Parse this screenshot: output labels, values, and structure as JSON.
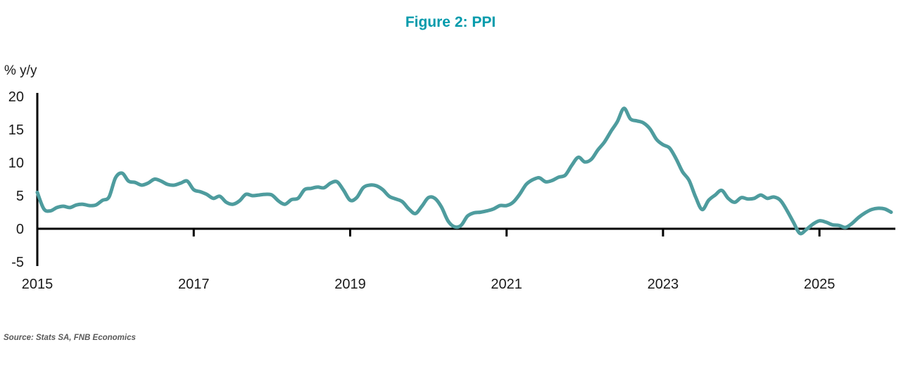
{
  "figure": {
    "title": "Figure 2: PPI"
  },
  "source": {
    "text": "Source: Stats SA, FNB Economics"
  },
  "colors": {
    "title": "#009AAB",
    "line": "#4E9C9E",
    "axis": "#000000",
    "tick_text": "#1a1a1a",
    "source_text": "#595959"
  },
  "chart_data": {
    "type": "line",
    "title": "Figure 2: PPI",
    "ylabel": "% y/y",
    "xlabel": "",
    "frequency": "monthly",
    "x_start": "2015-01",
    "x_end": "2025-12",
    "x_tick_years": [
      2015,
      2017,
      2019,
      2021,
      2023,
      2025
    ],
    "y_ticks": [
      20,
      15,
      10,
      5,
      0,
      -5
    ],
    "ylim": [
      -5,
      20
    ],
    "grid": false,
    "legend": "none",
    "series": [
      {
        "name": "PPI (% y/y)",
        "color": "#4E9C9E",
        "values": [
          5.5,
          3.0,
          2.7,
          3.2,
          3.4,
          3.2,
          3.6,
          3.7,
          3.5,
          3.6,
          4.3,
          4.8,
          7.7,
          8.4,
          7.2,
          7.0,
          6.6,
          6.9,
          7.5,
          7.2,
          6.7,
          6.6,
          6.9,
          7.2,
          5.9,
          5.6,
          5.2,
          4.6,
          4.9,
          4.0,
          3.7,
          4.2,
          5.2,
          5.0,
          5.1,
          5.2,
          5.1,
          4.2,
          3.7,
          4.4,
          4.6,
          5.9,
          6.1,
          6.3,
          6.2,
          6.9,
          7.1,
          5.8,
          4.3,
          4.7,
          6.2,
          6.6,
          6.5,
          5.9,
          4.9,
          4.5,
          4.1,
          3.0,
          2.3,
          3.4,
          4.7,
          4.6,
          3.3,
          1.2,
          0.3,
          0.5,
          1.9,
          2.4,
          2.5,
          2.7,
          3.0,
          3.5,
          3.5,
          4.0,
          5.2,
          6.7,
          7.4,
          7.7,
          7.1,
          7.3,
          7.8,
          8.1,
          9.6,
          10.8,
          10.1,
          10.5,
          11.9,
          13.1,
          14.7,
          16.2,
          18.2,
          16.6,
          16.3,
          16.0,
          15.1,
          13.5,
          12.7,
          12.2,
          10.6,
          8.6,
          7.3,
          4.8,
          2.9,
          4.3,
          5.1,
          5.8,
          4.6,
          4.0,
          4.7,
          4.5,
          4.6,
          5.1,
          4.6,
          4.8,
          4.3,
          2.8,
          1.0,
          -0.7,
          -0.1,
          0.7,
          1.2,
          1.0,
          0.6,
          0.5,
          0.2,
          0.8,
          1.7,
          2.4,
          2.9,
          3.1,
          3.0,
          2.5
        ]
      }
    ]
  }
}
